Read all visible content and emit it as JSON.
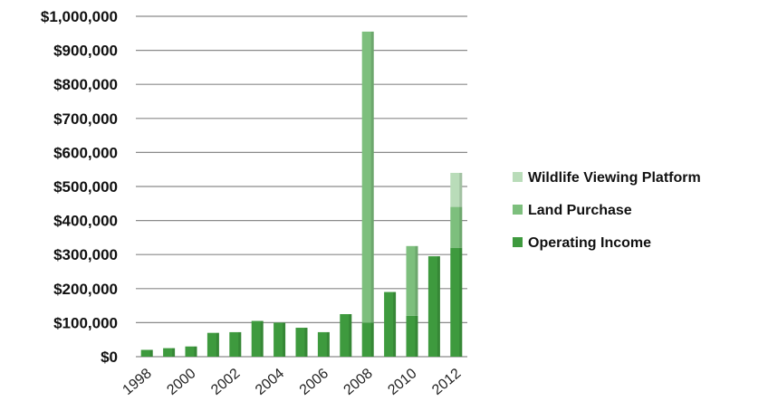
{
  "chart_data": {
    "type": "bar",
    "stacked": true,
    "categories": [
      "1998",
      "1999",
      "2000",
      "2001",
      "2002",
      "2003",
      "2004",
      "2005",
      "2006",
      "2007",
      "2008",
      "2009",
      "2010",
      "2011",
      "2012"
    ],
    "x_tick_labels": [
      "1998",
      "2000",
      "2002",
      "2004",
      "2006",
      "2008",
      "2010",
      "2012"
    ],
    "y_tick_labels": [
      "$0",
      "$100,000",
      "$200,000",
      "$300,000",
      "$400,000",
      "$500,000",
      "$600,000",
      "$700,000",
      "$800,000",
      "$900,000",
      "$1,000,000"
    ],
    "ylim": [
      0,
      1000000
    ],
    "grid": true,
    "legend_position": "right",
    "series": [
      {
        "name": "Operating Income",
        "color": "#3e9a3e",
        "values": [
          20000,
          25000,
          30000,
          70000,
          72000,
          105000,
          100000,
          85000,
          72000,
          125000,
          100000,
          190000,
          120000,
          295000,
          320000
        ]
      },
      {
        "name": "Land Purchase",
        "color": "#7dbf7d",
        "values": [
          0,
          0,
          0,
          0,
          0,
          0,
          0,
          0,
          0,
          0,
          855000,
          0,
          205000,
          0,
          120000
        ]
      },
      {
        "name": "Wildlife Viewing Platform",
        "color": "#b9dcb9",
        "values": [
          0,
          0,
          0,
          0,
          0,
          0,
          0,
          0,
          0,
          0,
          0,
          0,
          0,
          0,
          100000
        ]
      }
    ]
  }
}
